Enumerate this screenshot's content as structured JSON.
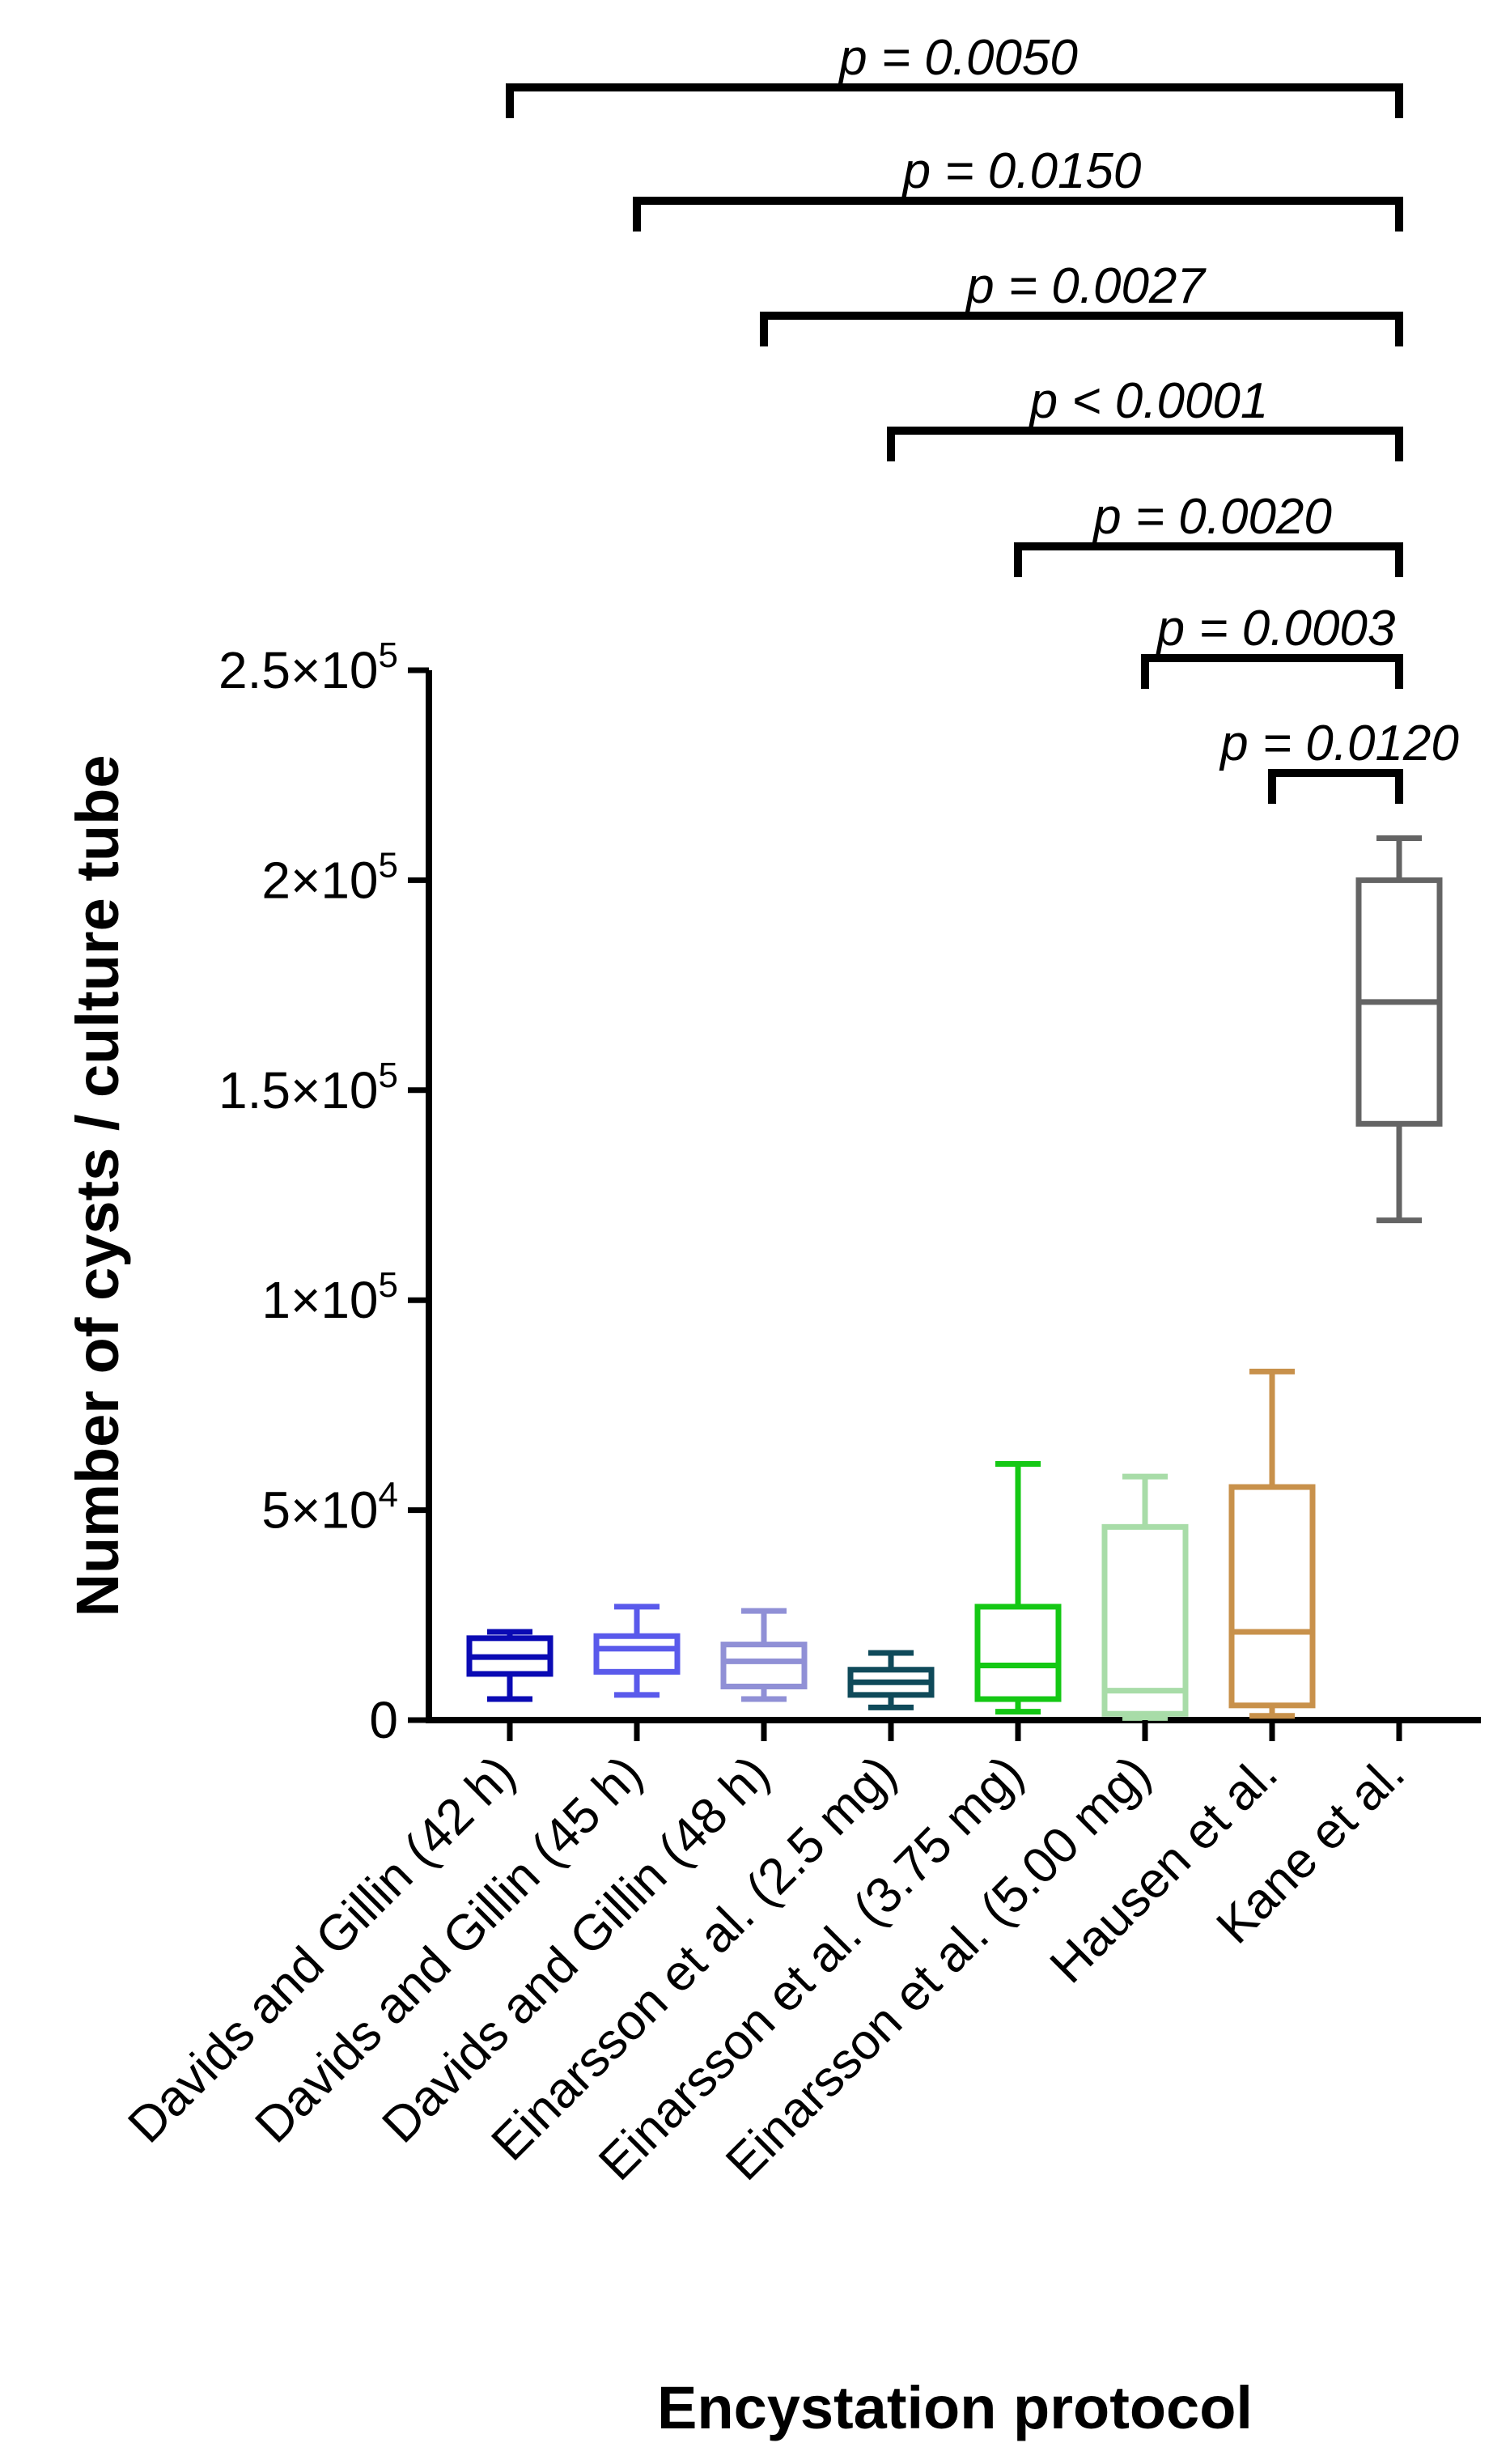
{
  "chart_data": {
    "type": "box",
    "title": "",
    "xlabel": "Encystation protocol",
    "ylabel": "Number of cysts / culture tube",
    "ylim": [
      0,
      250000
    ],
    "yticks": [
      {
        "value": 0,
        "label": "0"
      },
      {
        "value": 50000,
        "label": "5×10",
        "exp": "4"
      },
      {
        "value": 100000,
        "label": "1×10",
        "exp": "5"
      },
      {
        "value": 150000,
        "label": "1.5×10",
        "exp": "5"
      },
      {
        "value": 200000,
        "label": "2×10",
        "exp": "5"
      },
      {
        "value": 250000,
        "label": "2.5×10",
        "exp": "5"
      }
    ],
    "categories": [
      "Davids and Gillin (42 h)",
      "Davids and Gillin (45 h)",
      "Davids and Gillin (48 h)",
      "Einarsson et al. (2.5 mg)",
      "Einarsson et al. (3.75 mg)",
      "Einarsson et al. (5.00 mg)",
      "Hausen et al.",
      "Kane et al."
    ],
    "boxes": [
      {
        "min": 5000,
        "q1": 11000,
        "median": 15000,
        "q3": 19500,
        "max": 21000,
        "color": "#0a0ab4"
      },
      {
        "min": 6000,
        "q1": 11500,
        "median": 17000,
        "q3": 20000,
        "max": 27000,
        "color": "#5a5aeb"
      },
      {
        "min": 5000,
        "q1": 8000,
        "median": 14000,
        "q3": 18000,
        "max": 26000,
        "color": "#9090d6"
      },
      {
        "min": 3000,
        "q1": 6000,
        "median": 9000,
        "q3": 12000,
        "max": 16000,
        "color": "#0f4a5a"
      },
      {
        "min": 2000,
        "q1": 5000,
        "median": 13000,
        "q3": 27000,
        "max": 61000,
        "color": "#14c814"
      },
      {
        "min": 500,
        "q1": 1500,
        "median": 7000,
        "q3": 46000,
        "max": 58000,
        "color": "#a8dca8"
      },
      {
        "min": 1000,
        "q1": 3500,
        "median": 21000,
        "q3": 55500,
        "max": 83000,
        "color": "#c8914b"
      },
      {
        "min": 119000,
        "q1": 142000,
        "median": 171000,
        "q3": 200000,
        "max": 210000,
        "color": "#646464"
      }
    ],
    "comparisons": [
      {
        "from": 0,
        "to": 7,
        "label": "p = 0.0050"
      },
      {
        "from": 1,
        "to": 7,
        "label": "p = 0.0150"
      },
      {
        "from": 2,
        "to": 7,
        "label": "p = 0.0027"
      },
      {
        "from": 3,
        "to": 7,
        "label": "p < 0.0001"
      },
      {
        "from": 4,
        "to": 7,
        "label": "p = 0.0020"
      },
      {
        "from": 5,
        "to": 7,
        "label": "p = 0.0003"
      },
      {
        "from": 6,
        "to": 7,
        "label": "p = 0.0120"
      }
    ]
  }
}
